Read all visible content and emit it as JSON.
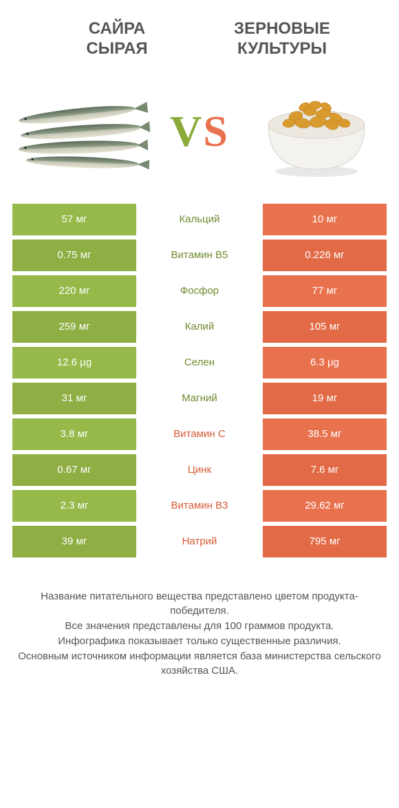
{
  "colors": {
    "left_fill": "#96b94a",
    "left_fill_alt": "#8fae44",
    "right_fill": "#e9724e",
    "right_fill_alt": "#e26a46",
    "label_left": "#6f8a2e",
    "label_right": "#d55a37",
    "text_mute": "#555555",
    "white": "#ffffff"
  },
  "header": {
    "left_title": "САЙРА\nСЫРАЯ",
    "right_title": "ЗЕРНОВЫЕ\nКУЛЬТУРЫ"
  },
  "vs": {
    "v": "V",
    "s": "S"
  },
  "rows": [
    {
      "left": "57 мг",
      "label": "Кальций",
      "right": "10 мг",
      "winner": "left"
    },
    {
      "left": "0.75 мг",
      "label": "Витамин B5",
      "right": "0.226 мг",
      "winner": "left"
    },
    {
      "left": "220 мг",
      "label": "Фосфор",
      "right": "77 мг",
      "winner": "left"
    },
    {
      "left": "259 мг",
      "label": "Калий",
      "right": "105 мг",
      "winner": "left"
    },
    {
      "left": "12.6 µg",
      "label": "Селен",
      "right": "6.3 µg",
      "winner": "left"
    },
    {
      "left": "31 мг",
      "label": "Магний",
      "right": "19 мг",
      "winner": "left"
    },
    {
      "left": "3.8 мг",
      "label": "Витамин C",
      "right": "38.5 мг",
      "winner": "right"
    },
    {
      "left": "0.67 мг",
      "label": "Цинк",
      "right": "7.6 мг",
      "winner": "right"
    },
    {
      "left": "2.3 мг",
      "label": "Витамин B3",
      "right": "29.62 мг",
      "winner": "right"
    },
    {
      "left": "39 мг",
      "label": "Натрий",
      "right": "795 мг",
      "winner": "right"
    }
  ],
  "footer": {
    "line1": "Название питательного вещества представлено цветом продукта-победителя.",
    "line2": "Все значения представлены для 100 граммов продукта.",
    "line3": "Инфографика показывает только существенные различия.",
    "line4": "Основным источником информации является база министерства сельского хозяйства США."
  }
}
